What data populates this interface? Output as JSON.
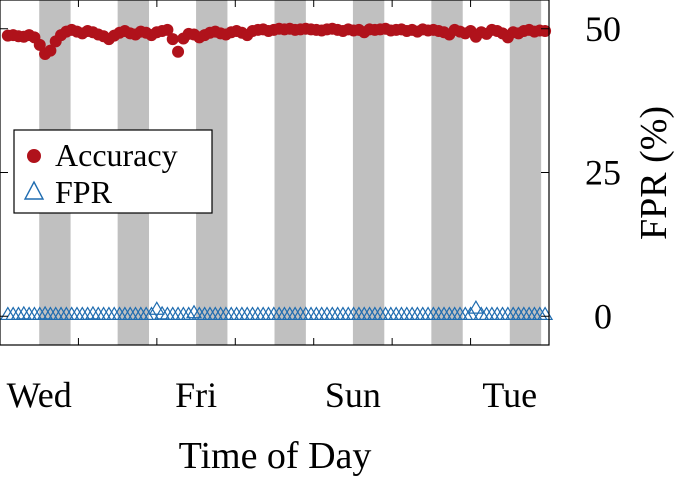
{
  "chart_data": {
    "type": "scatter",
    "xlabel": "Time of Day",
    "ylabel": "FPR (%)",
    "ylim": [
      -5,
      55
    ],
    "xlim": [
      0,
      7
    ],
    "yticks": [
      0,
      25,
      50
    ],
    "xtick_labels": [
      {
        "x": 0.5,
        "label": "Wed"
      },
      {
        "x": 2.5,
        "label": "Fri"
      },
      {
        "x": 4.5,
        "label": "Sun"
      },
      {
        "x": 6.5,
        "label": "Tue"
      }
    ],
    "shaded_bands": [
      [
        0.5,
        0.9
      ],
      [
        1.5,
        1.9
      ],
      [
        2.5,
        2.9
      ],
      [
        3.5,
        3.9
      ],
      [
        4.5,
        4.9
      ],
      [
        5.5,
        5.9
      ],
      [
        6.5,
        6.9
      ]
    ],
    "legend": {
      "placement": "left",
      "entries": [
        "Accuracy",
        "FPR"
      ]
    },
    "grid": false,
    "colors": {
      "accuracy": "#b0121b",
      "fpr": "#1f6cb0",
      "band": "#c0c0c0"
    },
    "series": [
      {
        "name": "Accuracy",
        "marker": "circle",
        "x_start": 0.1,
        "x_end": 6.95,
        "values": [
          48.8,
          48.9,
          48.7,
          48.6,
          48.9,
          48.5,
          47.2,
          45.6,
          46.2,
          47.8,
          48.9,
          49.5,
          49.8,
          49.5,
          49.2,
          49.6,
          49.4,
          49.0,
          48.7,
          48.2,
          48.8,
          49.3,
          49.6,
          49.2,
          49.0,
          49.5,
          49.3,
          48.9,
          49.4,
          49.6,
          49.8,
          48.2,
          46.0,
          48.3,
          49.1,
          49.0,
          48.5,
          48.9,
          49.3,
          49.5,
          49.2,
          49.0,
          49.4,
          49.6,
          49.3,
          48.9,
          49.6,
          49.8,
          49.9,
          49.6,
          49.8,
          50.0,
          49.9,
          50.0,
          49.8,
          49.9,
          50.0,
          49.9,
          49.8,
          49.7,
          49.9,
          50.0,
          49.8,
          49.6,
          49.9,
          49.7,
          49.8,
          49.4,
          49.9,
          49.8,
          49.9,
          50.0,
          49.7,
          49.8,
          49.9,
          49.6,
          49.8,
          49.5,
          49.9,
          49.7,
          49.8,
          49.6,
          49.4,
          49.0,
          49.8,
          49.5,
          49.2,
          49.6,
          48.6,
          49.4,
          49.1,
          49.8,
          49.6,
          49.2,
          48.5,
          49.4,
          49.2,
          49.6,
          49.8,
          49.5,
          49.7,
          49.6
        ]
      },
      {
        "name": "FPR",
        "marker": "triangle",
        "x_start": 0.1,
        "x_end": 6.95,
        "values": [
          0.3,
          0.3,
          0.3,
          0.4,
          0.3,
          0.3,
          0.3,
          0.4,
          0.3,
          0.3,
          0.3,
          0.3,
          0.3,
          0.3,
          0.3,
          0.3,
          0.4,
          0.3,
          0.3,
          0.3,
          0.3,
          0.3,
          0.3,
          0.3,
          0.3,
          0.3,
          0.3,
          0.3,
          1.2,
          0.4,
          0.3,
          0.3,
          0.3,
          0.3,
          0.3,
          0.6,
          0.3,
          0.3,
          0.3,
          0.3,
          0.3,
          0.3,
          0.3,
          0.3,
          0.3,
          0.3,
          0.3,
          0.3,
          0.3,
          0.3,
          0.3,
          0.3,
          0.3,
          0.3,
          0.3,
          0.3,
          0.3,
          0.3,
          0.3,
          0.3,
          0.3,
          0.3,
          0.3,
          0.3,
          0.3,
          0.3,
          0.3,
          0.3,
          0.3,
          0.3,
          0.3,
          0.3,
          0.3,
          0.3,
          0.3,
          0.3,
          0.3,
          0.3,
          0.3,
          0.3,
          0.3,
          0.3,
          0.3,
          0.3,
          0.3,
          0.3,
          0.3,
          0.3,
          1.4,
          0.3,
          0.3,
          0.3,
          0.3,
          0.3,
          0.3,
          0.3,
          0.3,
          0.3,
          0.3,
          0.3,
          0.3,
          0.3
        ]
      }
    ]
  }
}
